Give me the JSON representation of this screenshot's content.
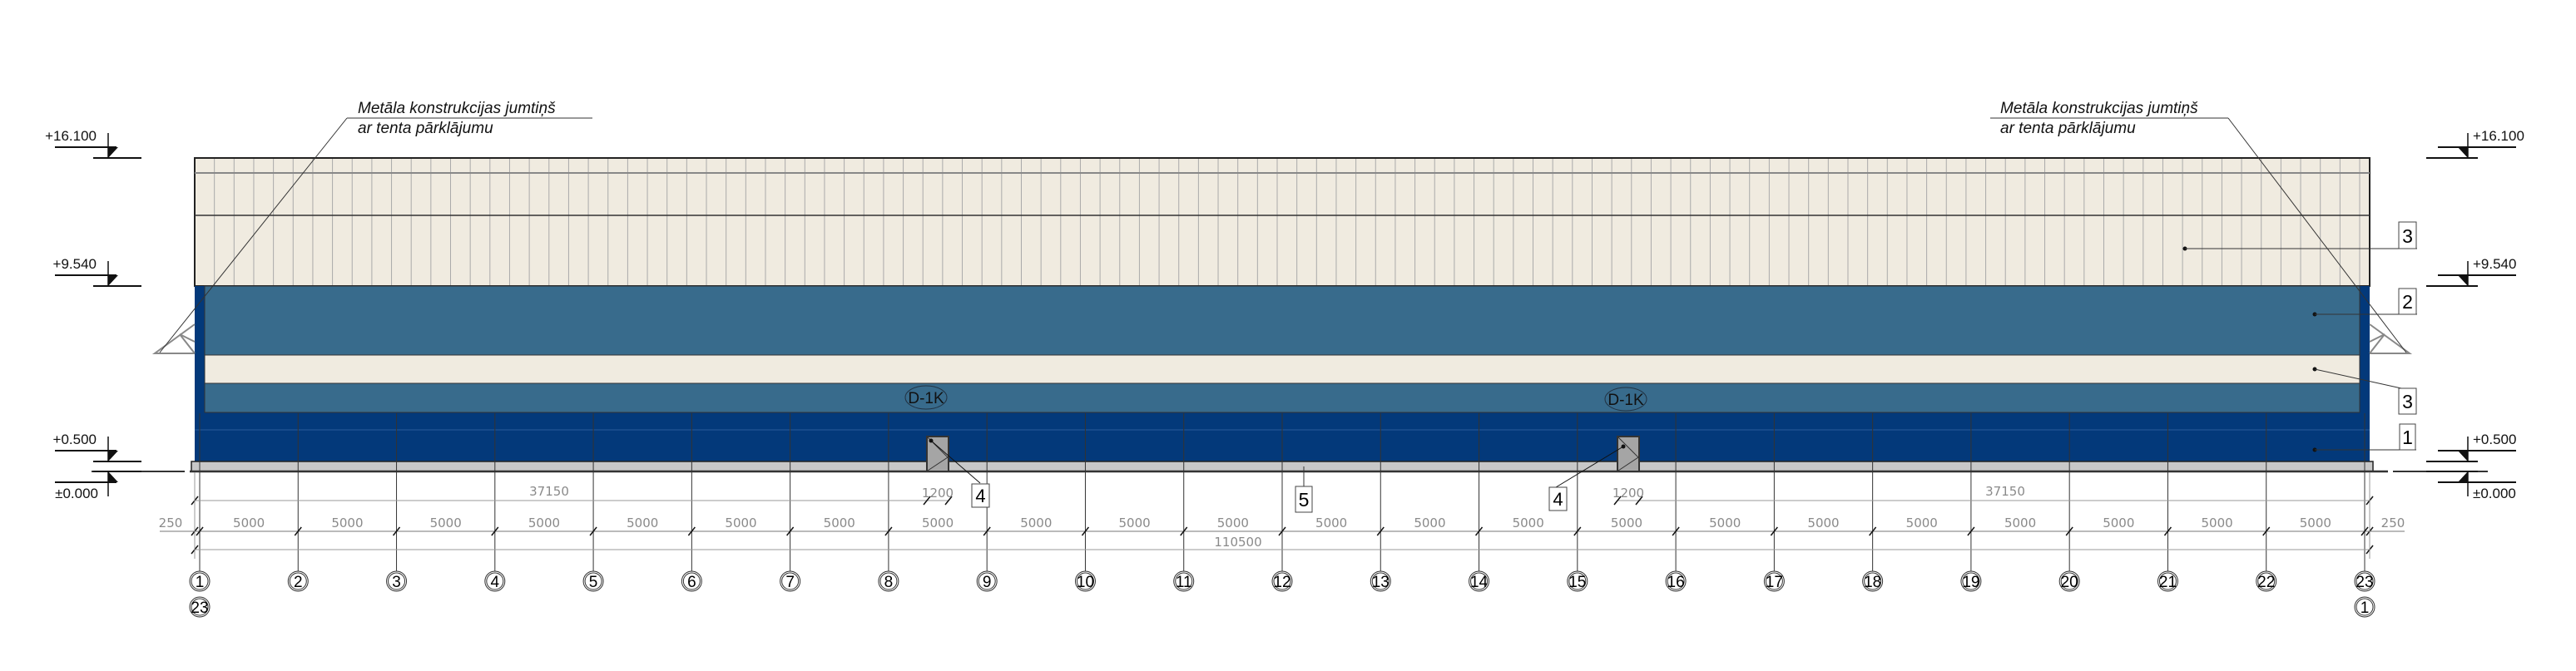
{
  "colors": {
    "upper_cladding": "#f0ebe0",
    "band_blue": "#386b8c",
    "base_blue": "#03397a",
    "stripe_cream": "#f0ebe0",
    "plinth_grey": "#c8c8c8",
    "door_grey": "#a5a5a5"
  },
  "callouts": [
    {
      "line1": "Metāla konstrukcijas jumtiņš",
      "line2": "ar tenta pārklājumu"
    },
    {
      "line1": "Metāla konstrukcijas jumtiņš",
      "line2": "ar tenta pārklājumu"
    }
  ],
  "levels": [
    "+16.100",
    "+9.540",
    "+0.500",
    "±0.000"
  ],
  "doors": [
    {
      "label": "D-1K",
      "width": "1200",
      "tag": "4"
    },
    {
      "label": "D-1K",
      "width": "1200",
      "tag": "4"
    }
  ],
  "material_tags": [
    "3",
    "2",
    "3",
    "1",
    "5"
  ],
  "dimensions": {
    "edge_left": "250",
    "edge_right": "250",
    "bay": "5000",
    "left_to_door": "37150",
    "door_to_right": "37150",
    "overall": "110500"
  },
  "axes": [
    "1",
    "2",
    "3",
    "4",
    "5",
    "6",
    "7",
    "8",
    "9",
    "10",
    "11",
    "12",
    "13",
    "14",
    "15",
    "16",
    "17",
    "18",
    "19",
    "20",
    "21",
    "22",
    "23"
  ],
  "axis_secondary": {
    "left": "23",
    "right": "1"
  }
}
